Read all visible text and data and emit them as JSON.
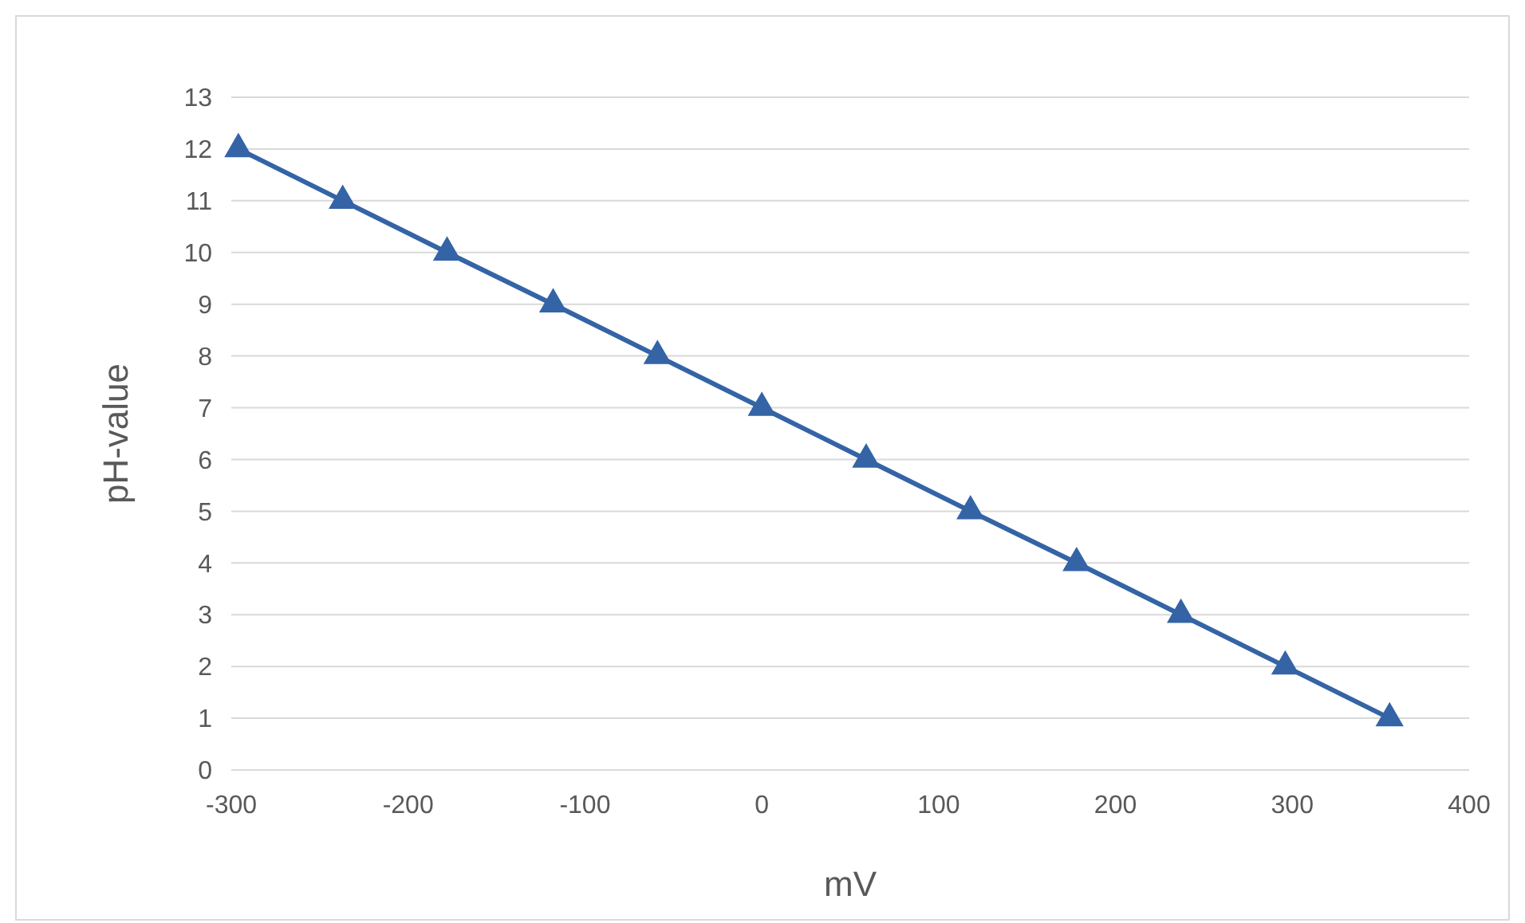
{
  "chart_data": {
    "type": "line",
    "xlabel": "mV",
    "ylabel": "pH-value",
    "x": [
      -296,
      -237,
      -178,
      -118,
      -59,
      0,
      59,
      118,
      178,
      237,
      296,
      355
    ],
    "series": [
      {
        "color": "#3464a6",
        "values": [
          12,
          11,
          10,
          9,
          8,
          7,
          6,
          5,
          4,
          3,
          2,
          1
        ]
      }
    ],
    "xlim": [
      -300,
      400
    ],
    "xticks": [
      -300,
      -200,
      -100,
      0,
      100,
      200,
      300,
      400
    ],
    "ylim": [
      0,
      13
    ],
    "yticks": [
      0,
      1,
      2,
      3,
      4,
      5,
      6,
      7,
      8,
      9,
      10,
      11,
      12,
      13
    ],
    "grid": "y",
    "marker": "triangle",
    "line_style": "solid"
  }
}
